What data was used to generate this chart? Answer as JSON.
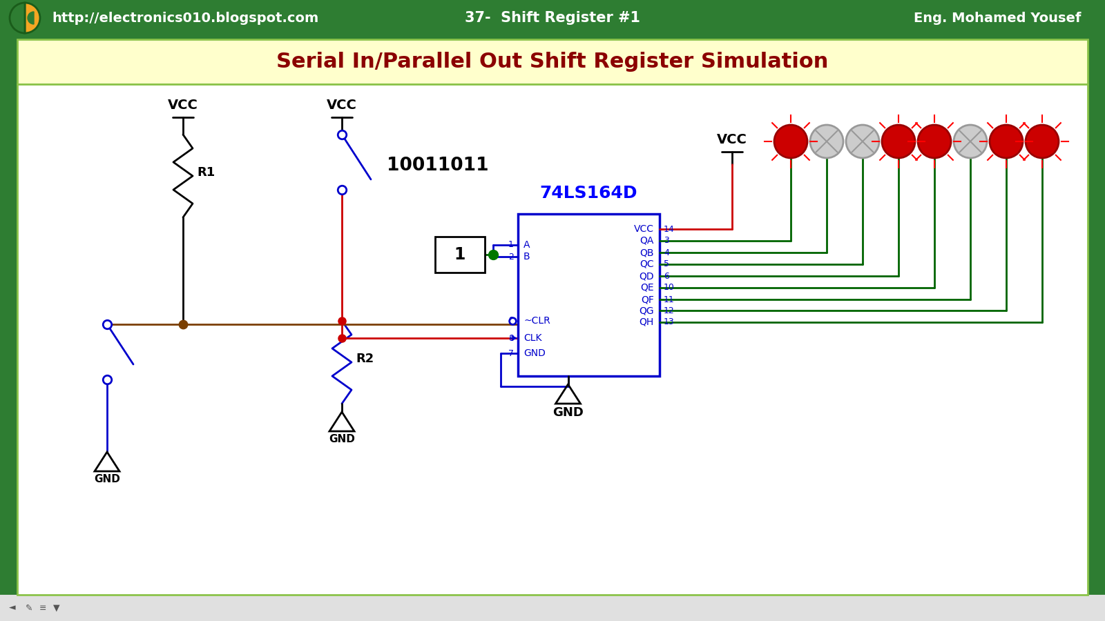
{
  "title": "Serial In/Parallel Out Shift Register Simulation",
  "header_bg": "#2e7d32",
  "header_text_color": "#ffffff",
  "header_left": "http://electronics010.blogspot.com",
  "header_center": "37-  Shift Register #1",
  "header_right": "Eng. Mohamed Yousef",
  "title_bg": "#ffffcc",
  "title_color": "#8b0000",
  "ic_name": "74LS164D",
  "ic_color": "#0000ff",
  "binary_data": "10011011",
  "led_on": [
    true,
    false,
    false,
    true,
    true,
    false,
    true,
    true
  ],
  "led_on_color": "#cc0000",
  "led_off_color": "#cccccc",
  "wire_brown": "#7b3f00",
  "wire_red": "#cc0000",
  "wire_blue": "#0000cc",
  "wire_green": "#006400",
  "wire_black": "#000000"
}
